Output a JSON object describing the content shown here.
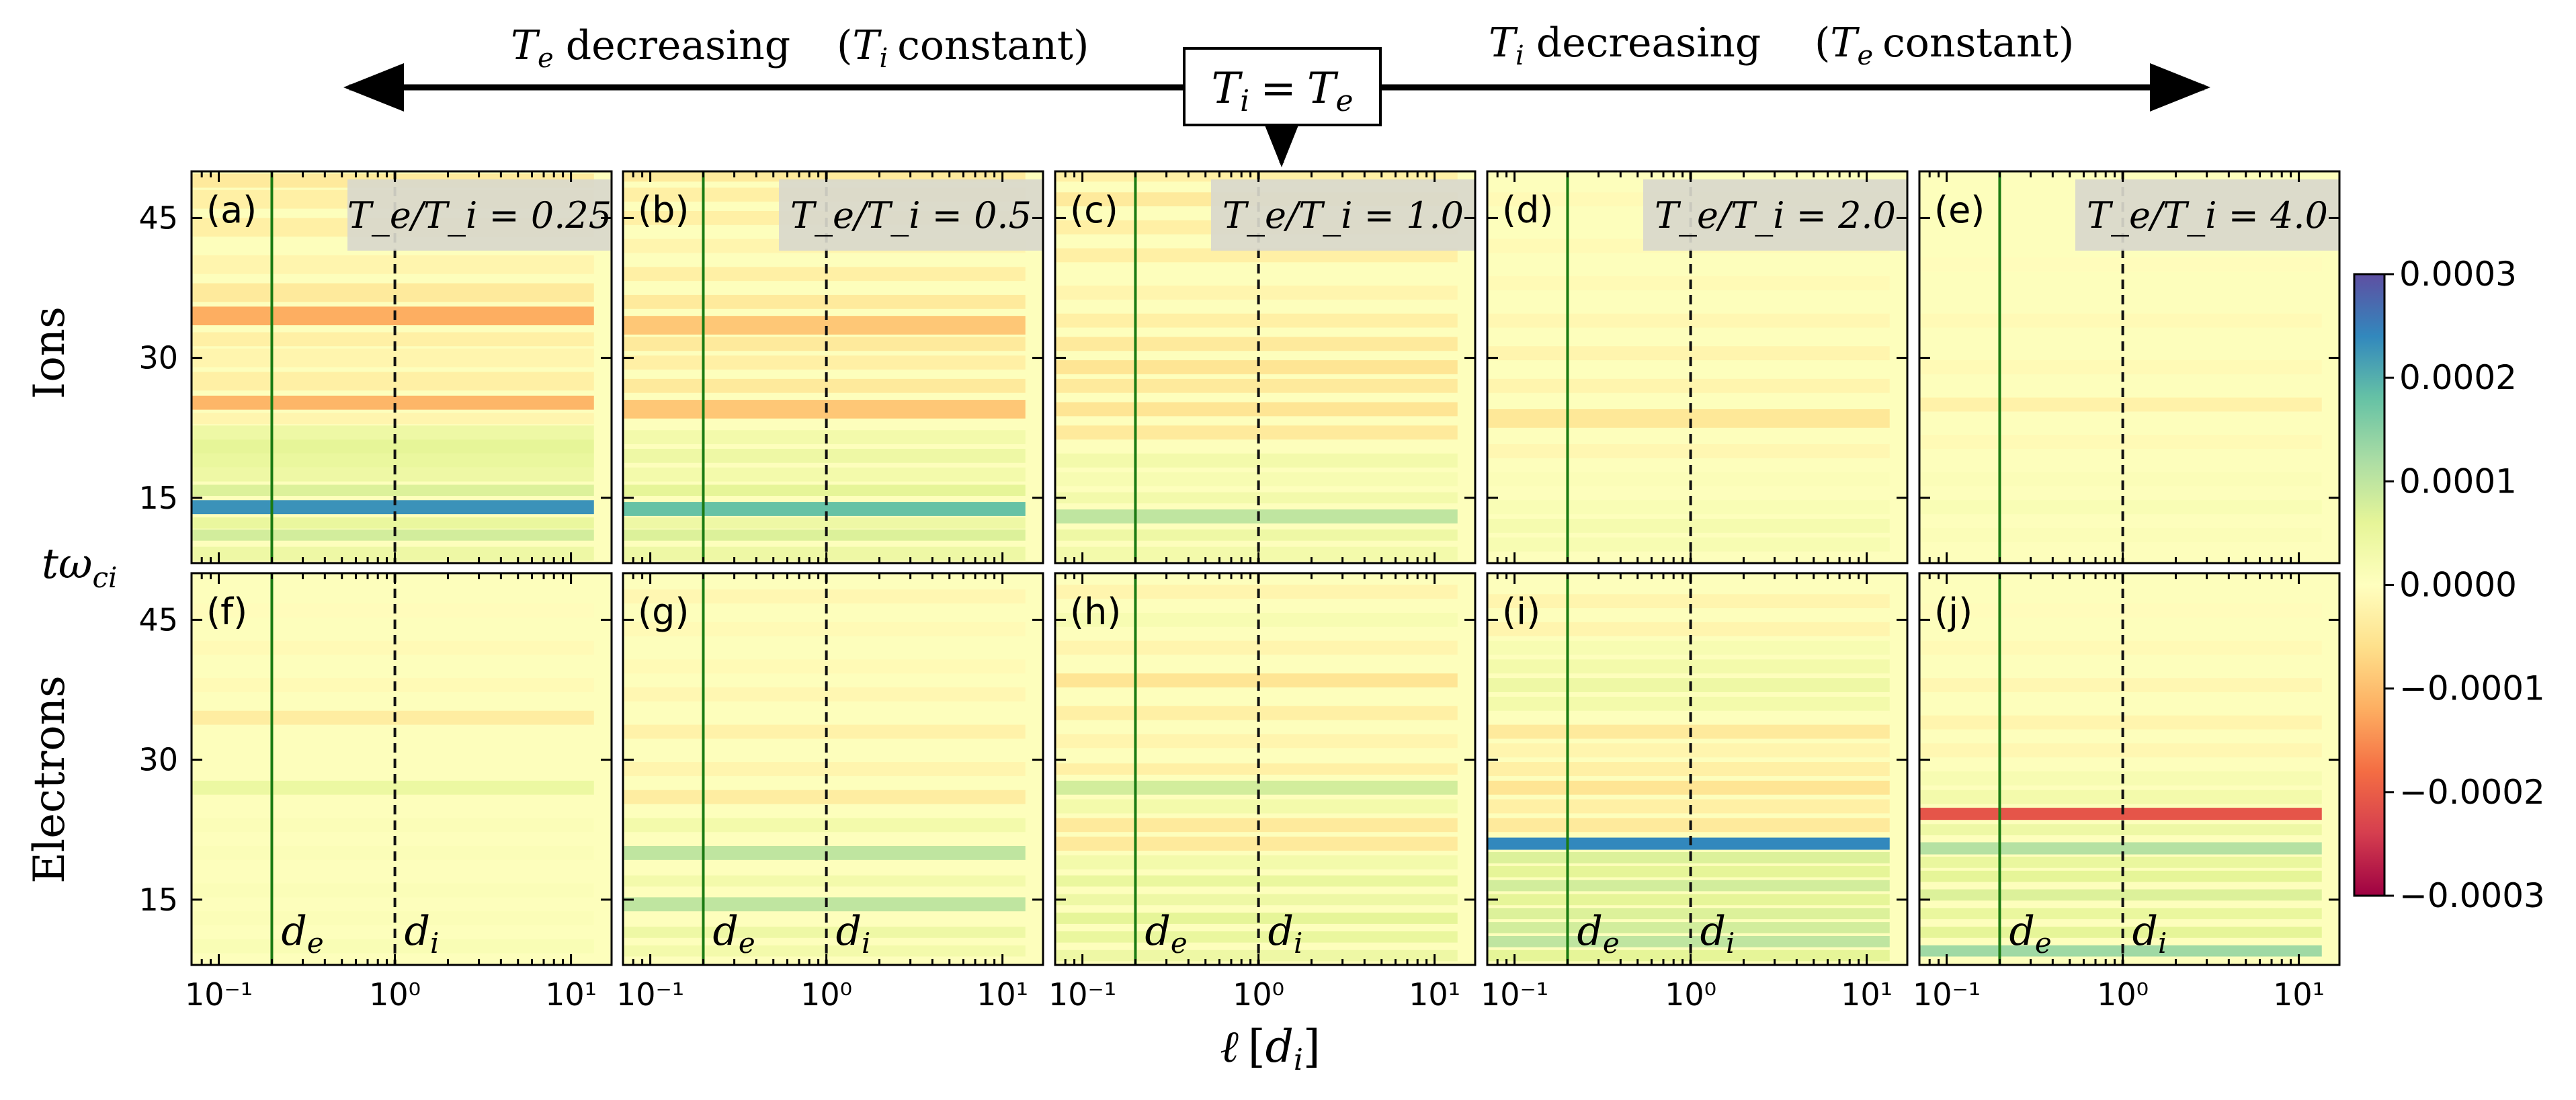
{
  "chart_data": {
    "type": "heatmap",
    "header": {
      "left_label": "T_e decreasing",
      "left_paren": "(T_i constant)",
      "center_label": "T_i = T_e",
      "right_label": "T_i decreasing",
      "right_paren": "(T_e constant)"
    },
    "xlabel": "ℓ [d_i]",
    "ylabel": "tω_ci",
    "row_labels": [
      "Ions",
      "Electrons"
    ],
    "x_axis": {
      "scale": "log",
      "xlim": [
        0.07,
        17
      ],
      "ticks": [
        {
          "v": 0.1,
          "label": "10⁻¹"
        },
        {
          "v": 1,
          "label": "10⁰"
        },
        {
          "v": 10,
          "label": "10¹"
        }
      ]
    },
    "y_axis": {
      "ylim": [
        8,
        50
      ],
      "ticks": [
        15,
        30,
        45
      ]
    },
    "vlines": [
      {
        "name": "d_e",
        "x": 0.2,
        "color": "#1a7a12",
        "style": "solid",
        "label": "d_e"
      },
      {
        "name": "d_i",
        "x": 1.0,
        "color": "#111111",
        "style": "dashed",
        "label": "d_i"
      }
    ],
    "colorbar": {
      "min": -0.0003,
      "max": 0.0003,
      "ticks": [
        "0.0003",
        "0.0002",
        "0.0001",
        "0.0000",
        "−0.0001",
        "−0.0002",
        "−0.0003"
      ],
      "tick_values": [
        0.0003,
        0.0002,
        0.0001,
        0.0,
        -0.0001,
        -0.0002,
        -0.0003
      ],
      "colormap": "Spectral"
    },
    "panels": [
      {
        "id": "a",
        "label": "(a)",
        "species": "Ions",
        "ratio": "T_e/T_i = 0.25",
        "bands": [
          [
            9,
            1.5,
            0.4
          ],
          [
            11,
            1.2,
            0.8
          ],
          [
            12.3,
            1.2,
            0.5
          ],
          [
            14,
            1.5,
            2.3
          ],
          [
            15.8,
            1.2,
            0.7
          ],
          [
            17.5,
            1.5,
            0.4
          ],
          [
            19,
            1.5,
            0.5
          ],
          [
            20.5,
            1.5,
            0.6
          ],
          [
            22,
            1.5,
            0.4
          ],
          [
            23.5,
            1.2,
            -0.2
          ],
          [
            25.2,
            1.5,
            -1.1
          ],
          [
            27.5,
            2,
            -0.3
          ],
          [
            30,
            2,
            -0.2
          ],
          [
            32,
            1.5,
            -0.3
          ],
          [
            34.5,
            2,
            -1.2
          ],
          [
            37,
            2,
            -0.4
          ],
          [
            40,
            2,
            -0.2
          ],
          [
            44,
            2,
            -0.3
          ],
          [
            47,
            2,
            -0.3
          ],
          [
            49,
            1.5,
            -0.4
          ]
        ]
      },
      {
        "id": "b",
        "label": "(b)",
        "species": "Ions",
        "ratio": "T_e/T_i = 0.5",
        "bands": [
          [
            9,
            1.5,
            0.4
          ],
          [
            11,
            1.2,
            0.7
          ],
          [
            12.3,
            1.2,
            0.4
          ],
          [
            13.8,
            1.5,
            1.8
          ],
          [
            15.8,
            1.2,
            0.6
          ],
          [
            17.5,
            1.5,
            0.3
          ],
          [
            19.5,
            1.5,
            0.4
          ],
          [
            21.5,
            1.5,
            0.3
          ],
          [
            24.5,
            2,
            -0.9
          ],
          [
            27,
            1.5,
            -0.4
          ],
          [
            29.5,
            1.5,
            -0.3
          ],
          [
            31.5,
            1.5,
            -0.4
          ],
          [
            33.5,
            2,
            -0.9
          ],
          [
            36,
            1.5,
            -0.4
          ],
          [
            39,
            1.5,
            -0.3
          ],
          [
            42,
            1.5,
            -0.2
          ],
          [
            45,
            1.5,
            -0.3
          ],
          [
            47.5,
            1.5,
            -0.3
          ],
          [
            49.5,
            1.2,
            -0.4
          ]
        ]
      },
      {
        "id": "c",
        "label": "(c)",
        "species": "Ions",
        "ratio": "T_e/T_i = 1.0",
        "bands": [
          [
            9,
            1.5,
            0.3
          ],
          [
            11,
            1.2,
            0.4
          ],
          [
            13,
            1.5,
            1.0
          ],
          [
            15,
            1.2,
            0.3
          ],
          [
            17,
            1.5,
            0.2
          ],
          [
            19,
            1.5,
            0.3
          ],
          [
            22,
            1.5,
            -0.4
          ],
          [
            24.5,
            1.5,
            -0.5
          ],
          [
            27,
            1.5,
            -0.4
          ],
          [
            29,
            1.5,
            -0.5
          ],
          [
            31.5,
            1.5,
            -0.4
          ],
          [
            34,
            1.5,
            -0.3
          ],
          [
            37,
            1.5,
            -0.2
          ],
          [
            41,
            1.5,
            -0.3
          ],
          [
            44,
            1.5,
            -0.3
          ],
          [
            47,
            1.5,
            -0.4
          ],
          [
            49.5,
            1.2,
            -0.3
          ]
        ]
      },
      {
        "id": "d",
        "label": "(d)",
        "species": "Ions",
        "ratio": "T_e/T_i = 2.0",
        "bands": [
          [
            10,
            1.5,
            0.2
          ],
          [
            12,
            1.5,
            0.25
          ],
          [
            14,
            1.5,
            0.15
          ],
          [
            17,
            1.5,
            0.1
          ],
          [
            20,
            1.5,
            -0.15
          ],
          [
            23.5,
            2,
            -0.45
          ],
          [
            27,
            1.5,
            -0.2
          ],
          [
            30.5,
            1.5,
            -0.2
          ],
          [
            34,
            1.5,
            -0.15
          ],
          [
            38,
            1.5,
            -0.1
          ],
          [
            42,
            1.5,
            -0.1
          ],
          [
            47,
            1.5,
            -0.1
          ]
        ]
      },
      {
        "id": "e",
        "label": "(e)",
        "species": "Ions",
        "ratio": "T_e/T_i = 4.0",
        "bands": [
          [
            11,
            1.5,
            0.1
          ],
          [
            14,
            1.5,
            0.15
          ],
          [
            17,
            1.5,
            0.1
          ],
          [
            21,
            1.5,
            -0.1
          ],
          [
            25,
            1.5,
            -0.25
          ],
          [
            29,
            1.5,
            -0.1
          ],
          [
            34,
            1.5,
            -0.1
          ],
          [
            40,
            1.5,
            -0.05
          ]
        ]
      },
      {
        "id": "f",
        "label": "(f)",
        "species": "Electrons",
        "ratio": "",
        "bands": [
          [
            10,
            1.5,
            0.15
          ],
          [
            13,
            1.5,
            0.1
          ],
          [
            16,
            1.5,
            0.1
          ],
          [
            20,
            1.5,
            0.1
          ],
          [
            23,
            1.5,
            0.1
          ],
          [
            27,
            1.5,
            0.45
          ],
          [
            31,
            1.5,
            0.05
          ],
          [
            34.5,
            1.5,
            -0.35
          ],
          [
            38,
            1.5,
            -0.1
          ],
          [
            42,
            1.5,
            -0.1
          ],
          [
            46,
            1.5,
            -0.05
          ]
        ]
      },
      {
        "id": "g",
        "label": "(g)",
        "species": "Electrons",
        "ratio": "",
        "bands": [
          [
            9.5,
            1.2,
            0.3
          ],
          [
            11.5,
            1.2,
            0.4
          ],
          [
            14.5,
            1.5,
            1.0
          ],
          [
            17,
            1.2,
            0.3
          ],
          [
            20,
            1.5,
            1.0
          ],
          [
            23,
            1.5,
            0.3
          ],
          [
            26,
            1.5,
            -0.35
          ],
          [
            29,
            1.5,
            -0.2
          ],
          [
            33,
            1.5,
            -0.25
          ],
          [
            37,
            1.5,
            -0.15
          ],
          [
            40,
            1.5,
            -0.1
          ],
          [
            44,
            1.5,
            -0.1
          ],
          [
            47.5,
            1.5,
            -0.15
          ]
        ]
      },
      {
        "id": "h",
        "label": "(h)",
        "species": "Electrons",
        "ratio": "",
        "bands": [
          [
            9,
            1.2,
            0.4
          ],
          [
            11,
            1.2,
            0.5
          ],
          [
            13,
            1.2,
            0.6
          ],
          [
            15,
            1.2,
            0.4
          ],
          [
            17,
            1.2,
            0.5
          ],
          [
            19,
            1.5,
            0.3
          ],
          [
            21,
            1.5,
            -0.4
          ],
          [
            23,
            1.5,
            -0.4
          ],
          [
            25,
            1.5,
            0.3
          ],
          [
            27,
            1.5,
            0.8
          ],
          [
            29,
            1.2,
            -0.3
          ],
          [
            32,
            1.5,
            -0.2
          ],
          [
            35,
            1.5,
            -0.3
          ],
          [
            38.5,
            1.5,
            -0.5
          ],
          [
            42,
            1.5,
            -0.2
          ],
          [
            45,
            1.5,
            0.2
          ],
          [
            48,
            1.5,
            -0.2
          ]
        ]
      },
      {
        "id": "i",
        "label": "(i)",
        "species": "Electrons",
        "ratio": "",
        "bands": [
          [
            9,
            1.2,
            0.6
          ],
          [
            10.5,
            1.2,
            1.0
          ],
          [
            12,
            1.2,
            0.8
          ],
          [
            13.5,
            1.2,
            0.7
          ],
          [
            15,
            1.2,
            0.6
          ],
          [
            16.5,
            1.2,
            0.8
          ],
          [
            18,
            1.2,
            0.6
          ],
          [
            19.5,
            1.2,
            0.7
          ],
          [
            21,
            1.3,
            2.4
          ],
          [
            23,
            1.5,
            -0.4
          ],
          [
            25,
            1.5,
            -0.3
          ],
          [
            27,
            1.5,
            -0.5
          ],
          [
            29,
            1.5,
            -0.3
          ],
          [
            31,
            1.5,
            -0.2
          ],
          [
            33,
            1.5,
            -0.4
          ],
          [
            36,
            1.5,
            0.3
          ],
          [
            38,
            1.5,
            0.4
          ],
          [
            40,
            1.5,
            0.3
          ],
          [
            42,
            1.5,
            0.2
          ],
          [
            44,
            1.5,
            -0.2
          ],
          [
            47,
            1.5,
            -0.2
          ]
        ]
      },
      {
        "id": "j",
        "label": "(j)",
        "species": "Electrons",
        "ratio": "",
        "bands": [
          [
            9.5,
            1.2,
            1.3
          ],
          [
            11.5,
            1.2,
            0.6
          ],
          [
            13.5,
            1.2,
            0.5
          ],
          [
            15.5,
            1.2,
            0.7
          ],
          [
            17.5,
            1.2,
            0.6
          ],
          [
            19,
            1.2,
            0.5
          ],
          [
            20.5,
            1.3,
            1.1
          ],
          [
            22.5,
            1.2,
            0.4
          ],
          [
            24.2,
            1.3,
            -2.1
          ],
          [
            26,
            1.5,
            0.3
          ],
          [
            28,
            1.5,
            0.2
          ],
          [
            31,
            1.5,
            -0.15
          ],
          [
            34,
            1.5,
            -0.2
          ],
          [
            38,
            1.5,
            -0.15
          ],
          [
            42,
            1.5,
            -0.1
          ],
          [
            46,
            1.5,
            -0.05
          ]
        ]
      }
    ]
  }
}
